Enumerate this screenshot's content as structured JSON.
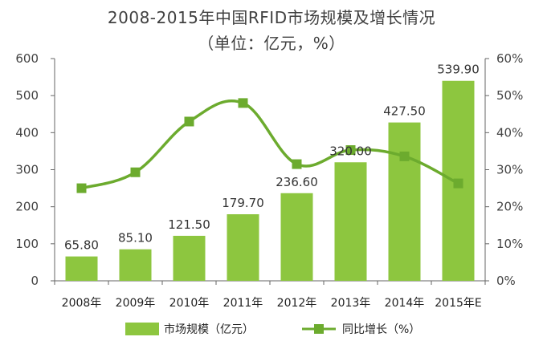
{
  "chart_data": {
    "type": "bar+line",
    "title": "2008-2015年中国RFID市场规模及增长情况",
    "subtitle": "（单位：亿元，%）",
    "categories": [
      "2008年",
      "2009年",
      "2010年",
      "2011年",
      "2012年",
      "2013年",
      "2014年",
      "2015年E"
    ],
    "series": [
      {
        "name": "市场规模（亿元）",
        "type": "bar",
        "axis": "left",
        "values": [
          65.8,
          85.1,
          121.5,
          179.7,
          236.6,
          320.0,
          427.5,
          539.9
        ],
        "labels": [
          "65.80",
          "85.10",
          "121.50",
          "179.70",
          "236.60",
          "320.00",
          "427.50",
          "539.90"
        ],
        "color": "#8dc63f"
      },
      {
        "name": "同比增长（%）",
        "type": "line",
        "axis": "right",
        "values": [
          25,
          29.3,
          43,
          48,
          31.5,
          35.3,
          33.6,
          26.3
        ],
        "color": "#6cab2e"
      }
    ],
    "y_left": {
      "min": 0,
      "max": 600,
      "ticks": [
        "0",
        "100",
        "200",
        "300",
        "400",
        "500",
        "600"
      ]
    },
    "y_right": {
      "min": 0,
      "max": 60,
      "ticks": [
        "0%",
        "10%",
        "20%",
        "30%",
        "40%",
        "50%",
        "60%"
      ]
    },
    "legend": {
      "position": "bottom"
    },
    "grid": false
  }
}
